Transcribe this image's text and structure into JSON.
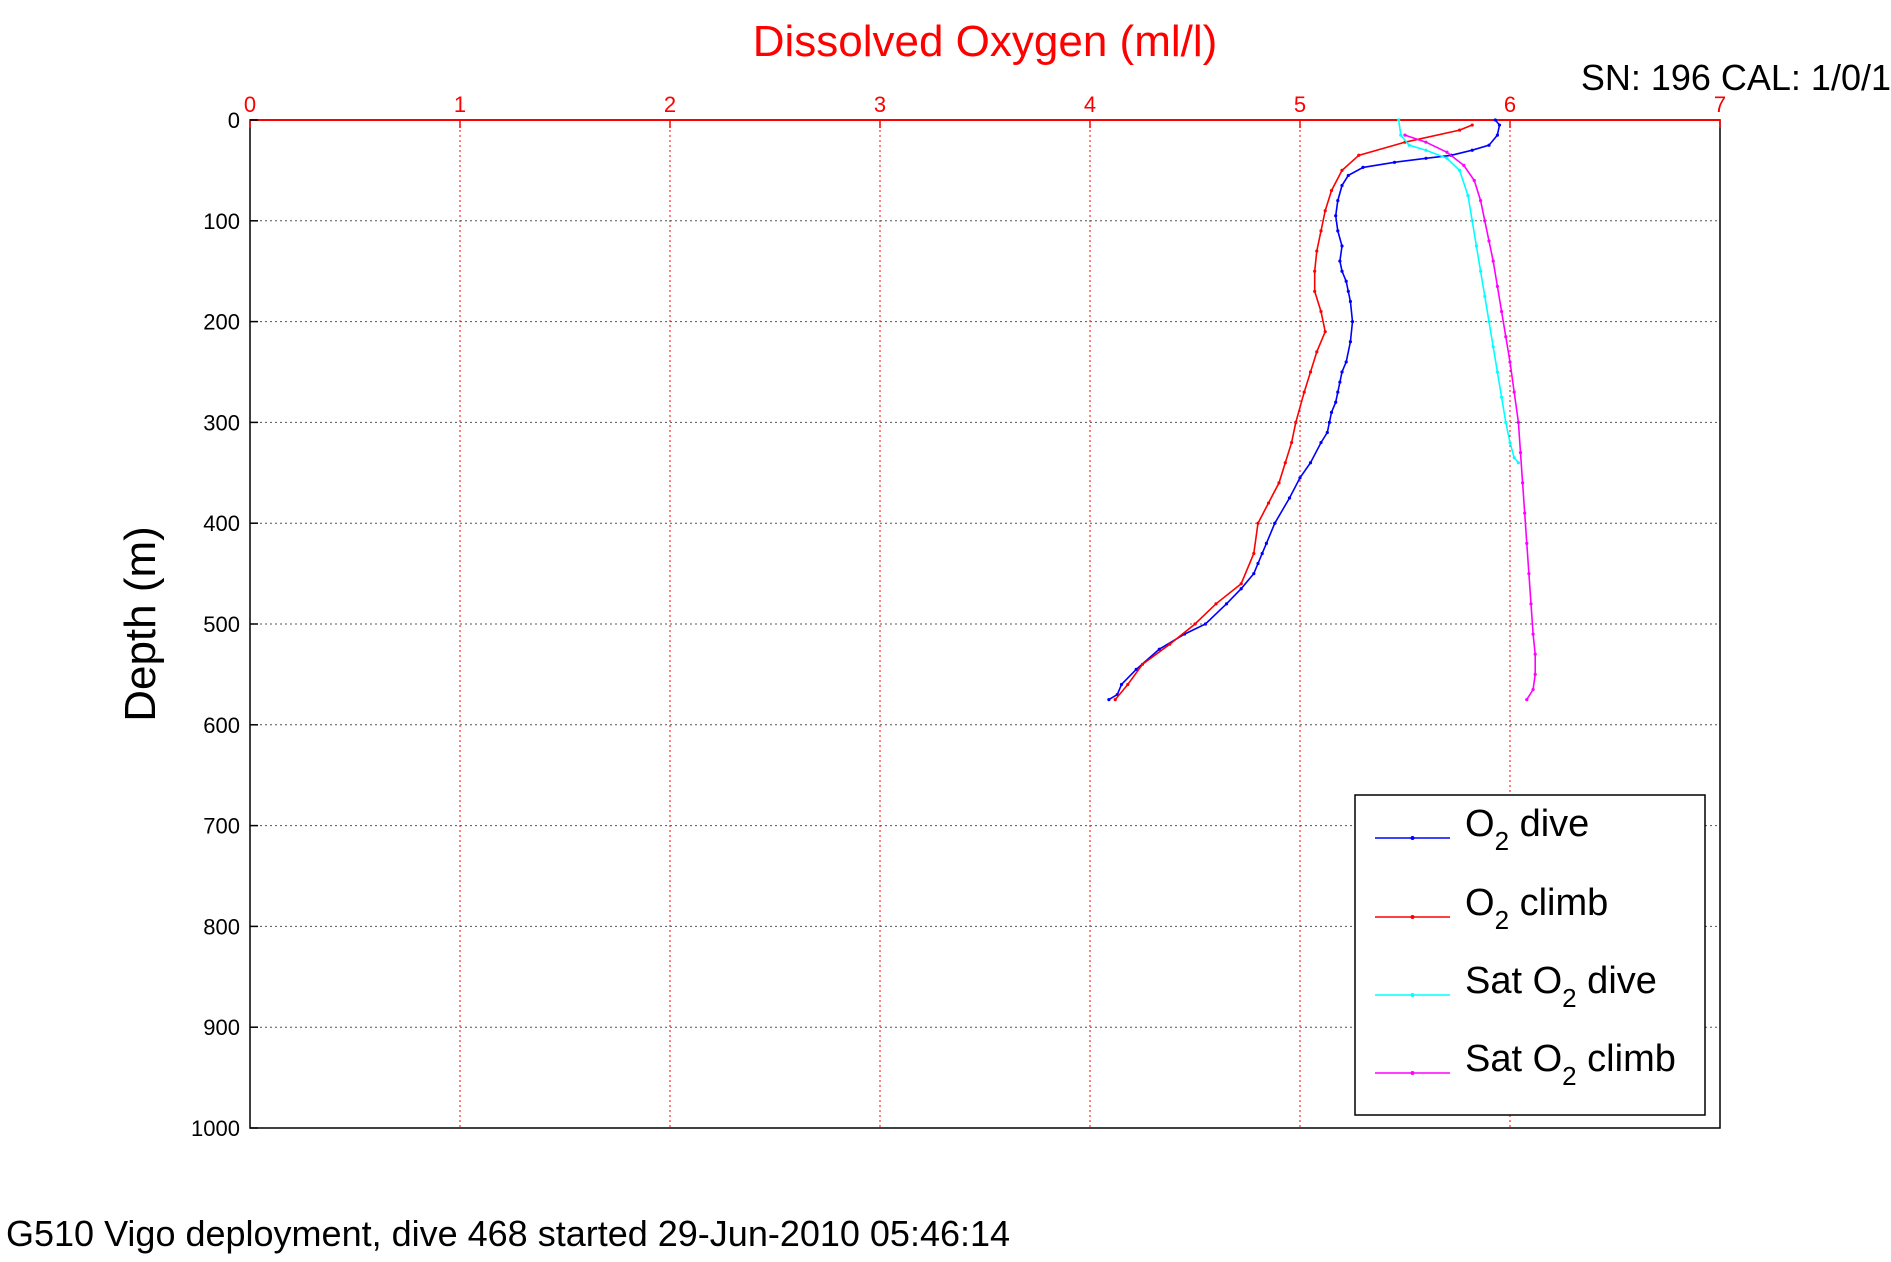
{
  "chart_data": {
    "type": "line",
    "title": "Dissolved Oxygen (ml/l)",
    "annotation": "SN: 196  CAL: 1/0/1",
    "ylabel": "Depth (m)",
    "xlabel": "",
    "footer": "G510 Vigo deployment, dive 468 started 29-Jun-2010 05:46:14",
    "xlim": [
      0,
      7
    ],
    "ylim": [
      0,
      1000
    ],
    "y_reversed": true,
    "x_axis_position": "top",
    "xticks": [
      "0",
      "1",
      "2",
      "3",
      "4",
      "5",
      "6",
      "7"
    ],
    "yticks": [
      "0",
      "100",
      "200",
      "300",
      "400",
      "500",
      "600",
      "700",
      "800",
      "900",
      "1000"
    ],
    "grid": true,
    "legend_position": "bottom-right",
    "series": [
      {
        "name": "O2 dive",
        "legend_main": "O",
        "legend_sub": "2",
        "legend_rest": " dive",
        "color": "#0000ff",
        "x": [
          5.93,
          5.95,
          5.94,
          5.9,
          5.82,
          5.72,
          5.6,
          5.45,
          5.3,
          5.23,
          5.2,
          5.18,
          5.17,
          5.18,
          5.2,
          5.19,
          5.2,
          5.22,
          5.23,
          5.24,
          5.25,
          5.24,
          5.22,
          5.2,
          5.19,
          5.18,
          5.17,
          5.15,
          5.14,
          5.13,
          5.1,
          5.05,
          5.0,
          4.95,
          4.88,
          4.84,
          4.82,
          4.8,
          4.78,
          4.72,
          4.65,
          4.55,
          4.45,
          4.33,
          4.22,
          4.15,
          4.13,
          4.09
        ],
        "y": [
          0,
          5,
          15,
          25,
          30,
          35,
          38,
          42,
          47,
          55,
          65,
          80,
          95,
          110,
          125,
          140,
          150,
          160,
          170,
          180,
          200,
          220,
          240,
          250,
          260,
          270,
          280,
          290,
          300,
          310,
          320,
          340,
          355,
          375,
          400,
          420,
          430,
          440,
          450,
          465,
          480,
          500,
          510,
          525,
          545,
          560,
          570,
          575
        ]
      },
      {
        "name": "O2 climb",
        "legend_main": "O",
        "legend_sub": "2",
        "legend_rest": " climb",
        "color": "#ff0000",
        "x": [
          5.82,
          5.76,
          5.5,
          5.28,
          5.2,
          5.15,
          5.12,
          5.1,
          5.08,
          5.07,
          5.07,
          5.1,
          5.12,
          5.08,
          5.05,
          5.02,
          4.98,
          4.96,
          4.93,
          4.9,
          4.85,
          4.8,
          4.78,
          4.72,
          4.6,
          4.5,
          4.38,
          4.25,
          4.18,
          4.12
        ],
        "y": [
          5,
          10,
          22,
          35,
          50,
          70,
          90,
          110,
          130,
          150,
          170,
          190,
          210,
          230,
          250,
          270,
          300,
          320,
          340,
          360,
          380,
          400,
          430,
          460,
          480,
          500,
          520,
          540,
          560,
          575
        ]
      },
      {
        "name": "Sat O2 dive",
        "legend_main": "Sat O",
        "legend_sub": "2",
        "legend_rest": " dive",
        "color": "#00ffff",
        "x": [
          5.47,
          5.48,
          5.52,
          5.6,
          5.7,
          5.76,
          5.8,
          5.82,
          5.84,
          5.86,
          5.88,
          5.9,
          5.92,
          5.94,
          5.96,
          5.98,
          6.0,
          6.02,
          6.04
        ],
        "y": [
          0,
          15,
          25,
          30,
          38,
          50,
          75,
          100,
          125,
          150,
          175,
          200,
          225,
          250,
          275,
          300,
          320,
          335,
          340
        ]
      },
      {
        "name": "Sat O2 climb",
        "legend_main": "Sat O",
        "legend_sub": "2",
        "legend_rest": " climb",
        "color": "#ff00ff",
        "x": [
          5.5,
          5.6,
          5.7,
          5.78,
          5.83,
          5.86,
          5.88,
          5.9,
          5.92,
          5.94,
          5.96,
          5.98,
          6.0,
          6.02,
          6.04,
          6.05,
          6.06,
          6.07,
          6.08,
          6.09,
          6.1,
          6.11,
          6.12,
          6.12,
          6.11,
          6.08
        ],
        "y": [
          15,
          22,
          32,
          45,
          60,
          80,
          100,
          120,
          140,
          165,
          190,
          215,
          240,
          270,
          300,
          330,
          360,
          390,
          420,
          450,
          480,
          510,
          530,
          550,
          565,
          575
        ]
      }
    ]
  }
}
